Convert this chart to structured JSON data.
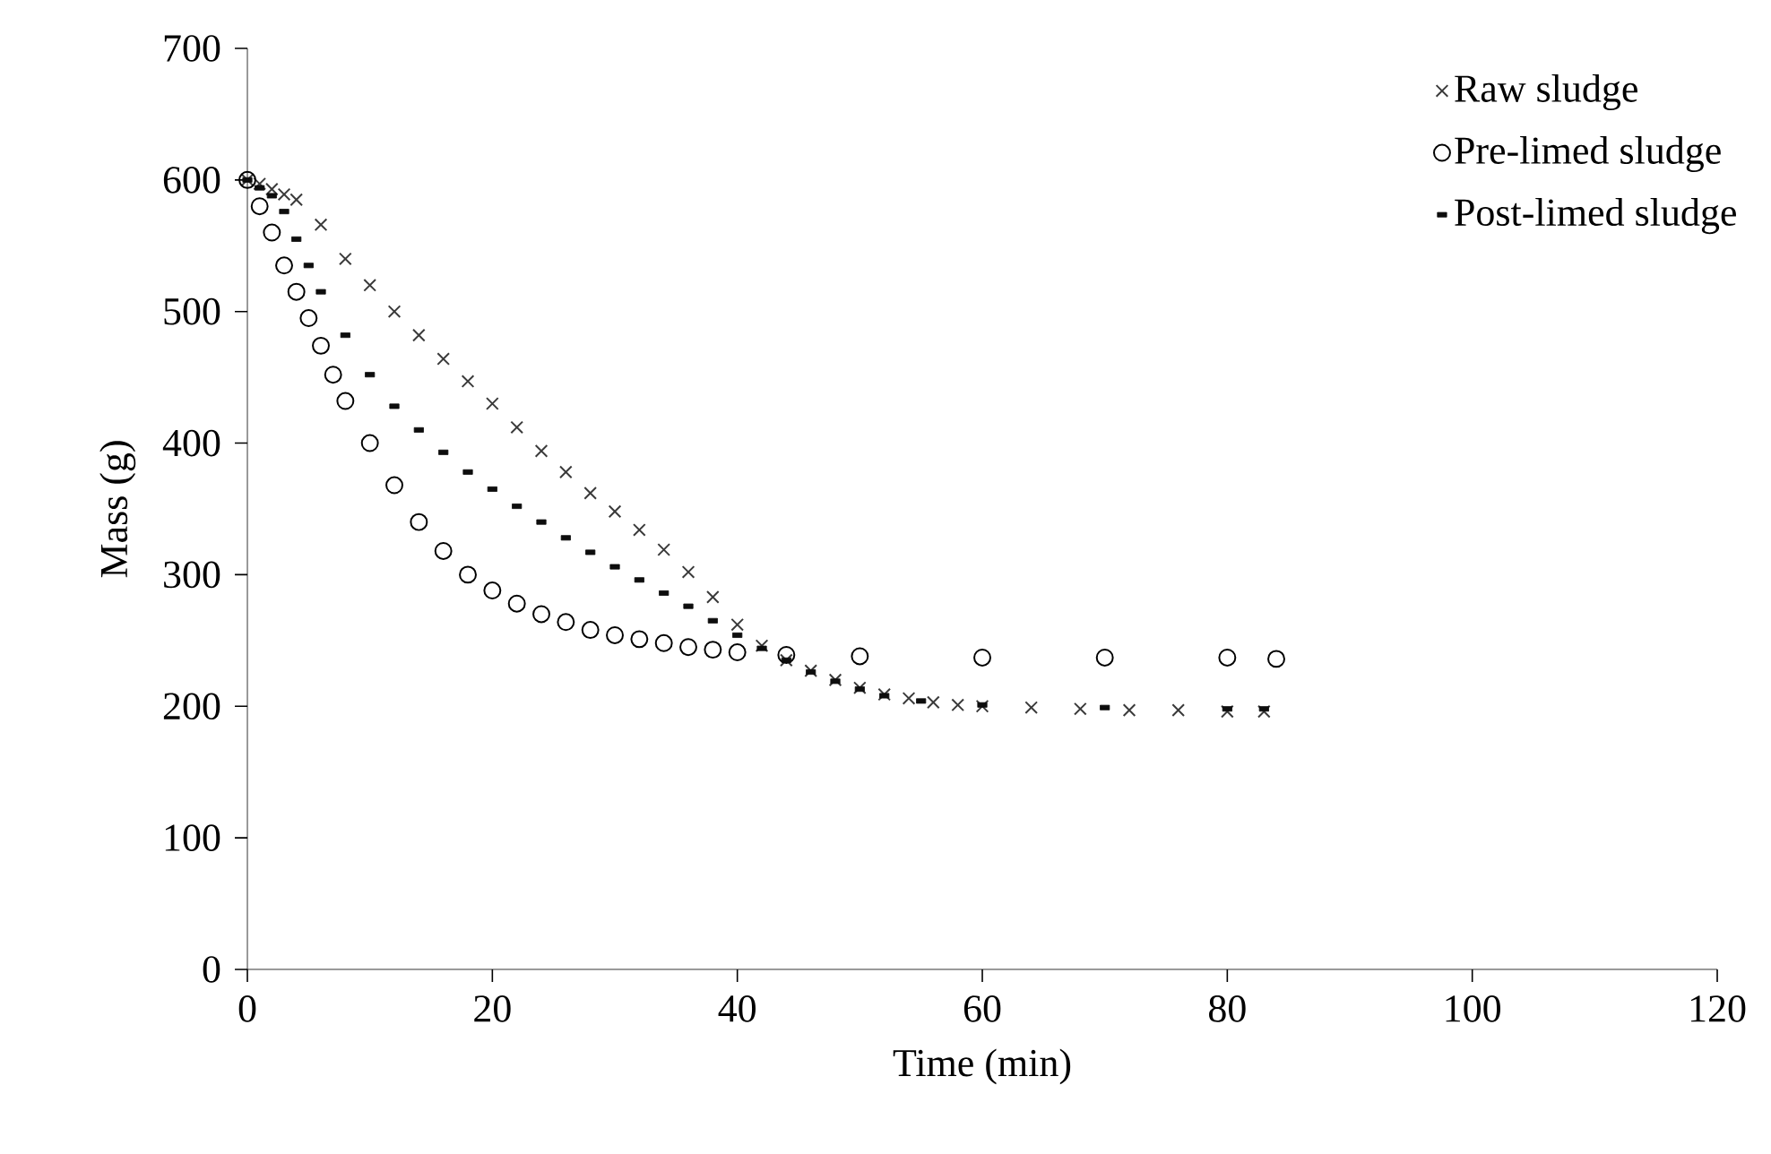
{
  "chart_data": {
    "type": "scatter",
    "xlabel": "Time (min)",
    "ylabel": "Mass (g)",
    "xlim": [
      0,
      120
    ],
    "ylim": [
      0,
      700
    ],
    "xticks": [
      0,
      20,
      40,
      60,
      80,
      100,
      120
    ],
    "yticks": [
      0,
      100,
      200,
      300,
      400,
      500,
      600,
      700
    ],
    "legend": "top right",
    "grid": false,
    "series": [
      {
        "name": "Raw sludge",
        "color": "#3a3a3a",
        "marker": "cross",
        "x": [
          0,
          1,
          2,
          3,
          4,
          6,
          8,
          10,
          12,
          14,
          16,
          18,
          20,
          22,
          24,
          26,
          28,
          30,
          32,
          34,
          36,
          38,
          40,
          42,
          44,
          46,
          48,
          50,
          52,
          54,
          56,
          58,
          60,
          64,
          68,
          72,
          76,
          80,
          83
        ],
        "values": [
          600,
          597,
          593,
          589,
          585,
          566,
          540,
          520,
          500,
          482,
          464,
          447,
          430,
          412,
          394,
          378,
          362,
          348,
          334,
          319,
          302,
          283,
          262,
          246,
          235,
          227,
          220,
          214,
          209,
          206,
          203,
          201,
          200,
          199,
          198,
          197,
          197,
          196,
          196
        ]
      },
      {
        "name": "Pre-limed sludge",
        "color": "#000000",
        "marker": "circle",
        "x": [
          0,
          1,
          2,
          3,
          4,
          5,
          6,
          7,
          8,
          10,
          12,
          14,
          16,
          18,
          20,
          22,
          24,
          26,
          28,
          30,
          32,
          34,
          36,
          38,
          40,
          44,
          50,
          60,
          70,
          80,
          84
        ],
        "values": [
          600,
          580,
          560,
          535,
          515,
          495,
          474,
          452,
          432,
          400,
          368,
          340,
          318,
          300,
          288,
          278,
          270,
          264,
          258,
          254,
          251,
          248,
          245,
          243,
          241,
          239,
          238,
          237,
          237,
          237,
          236
        ]
      },
      {
        "name": "Post-limed sludge",
        "color": "#0d0d0d",
        "x": [
          0,
          1,
          2,
          3,
          4,
          5,
          6,
          8,
          10,
          12,
          14,
          16,
          18,
          20,
          22,
          24,
          26,
          28,
          30,
          32,
          34,
          36,
          38,
          40,
          42,
          44,
          46,
          48,
          50,
          52,
          55,
          60,
          70,
          80,
          83
        ],
        "values": [
          600,
          594,
          588,
          576,
          555,
          535,
          515,
          482,
          452,
          428,
          410,
          393,
          378,
          365,
          352,
          340,
          328,
          317,
          306,
          296,
          286,
          276,
          265,
          254,
          244,
          235,
          226,
          219,
          213,
          208,
          204,
          201,
          199,
          198,
          198
        ]
      }
    ]
  }
}
